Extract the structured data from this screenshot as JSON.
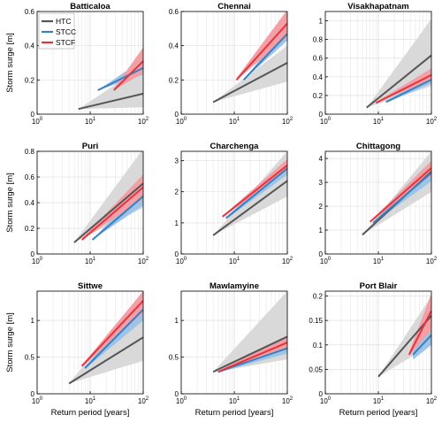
{
  "colors": {
    "htc": "#555555",
    "htc_band": "#d9d9d9",
    "stcc": "#3a7fc1",
    "stcc_band": "#9cc4e8",
    "stcf": "#e8323c",
    "stcf_band": "#f2a0a6",
    "grid": "#e0e0e0"
  },
  "chart_data": {
    "type": "line",
    "x_scale": "log",
    "xlabel": "Return period [years]",
    "ylabel": "Storm surge [m]",
    "xlim": [
      1,
      100
    ],
    "x_ticks": [
      {
        "value": 1,
        "base": "10",
        "exp": "0"
      },
      {
        "value": 10,
        "base": "10",
        "exp": "1"
      },
      {
        "value": 100,
        "base": "10",
        "exp": "2"
      }
    ],
    "legend": {
      "placement": "top-left",
      "entries": [
        "HTC",
        "STCC",
        "STCF"
      ]
    },
    "panels": [
      {
        "title": "Batticaloa",
        "ylim": [
          0,
          0.6
        ],
        "yticks": [
          0,
          0.2,
          0.4,
          0.6
        ],
        "htc": {
          "x": [
            6,
            100
          ],
          "y": [
            0.03,
            0.12
          ],
          "band_lower": [
            0.03,
            0.04
          ],
          "band_upper": [
            0.03,
            0.28
          ]
        },
        "stcc": {
          "x": [
            14,
            100
          ],
          "y": [
            0.14,
            0.27
          ],
          "band_lower": [
            0.14,
            0.23
          ],
          "band_upper": [
            0.14,
            0.32
          ]
        },
        "stcf": {
          "x": [
            28,
            100
          ],
          "y": [
            0.14,
            0.31
          ],
          "band_lower": [
            0.14,
            0.24
          ],
          "band_upper": [
            0.15,
            0.39
          ]
        }
      },
      {
        "title": "Chennai",
        "ylim": [
          0,
          0.6
        ],
        "yticks": [
          0,
          0.2,
          0.4,
          0.6
        ],
        "htc": {
          "x": [
            4,
            100
          ],
          "y": [
            0.07,
            0.3
          ],
          "band_lower": [
            0.07,
            0.19
          ],
          "band_upper": [
            0.07,
            0.4
          ]
        },
        "stcc": {
          "x": [
            15,
            100
          ],
          "y": [
            0.2,
            0.47
          ],
          "band_lower": [
            0.2,
            0.43
          ],
          "band_upper": [
            0.2,
            0.52
          ]
        },
        "stcf": {
          "x": [
            11,
            100
          ],
          "y": [
            0.2,
            0.53
          ],
          "band_lower": [
            0.2,
            0.45
          ],
          "band_upper": [
            0.21,
            0.61
          ]
        }
      },
      {
        "title": "Visakhapatnam",
        "ylim": [
          0,
          1.1
        ],
        "yticks": [
          0,
          0.2,
          0.4,
          0.6,
          0.8,
          1
        ],
        "htc": {
          "x": [
            6,
            100
          ],
          "y": [
            0.07,
            0.63
          ],
          "band_lower": [
            0.07,
            0.3
          ],
          "band_upper": [
            0.07,
            1.02
          ]
        },
        "stcc": {
          "x": [
            14,
            100
          ],
          "y": [
            0.13,
            0.37
          ],
          "band_lower": [
            0.12,
            0.33
          ],
          "band_upper": [
            0.14,
            0.43
          ]
        },
        "stcf": {
          "x": [
            9,
            100
          ],
          "y": [
            0.12,
            0.42
          ],
          "band_lower": [
            0.12,
            0.37
          ],
          "band_upper": [
            0.13,
            0.49
          ]
        }
      },
      {
        "title": "Puri",
        "ylim": [
          0,
          0.8
        ],
        "yticks": [
          0,
          0.2,
          0.4,
          0.6,
          0.8
        ],
        "htc": {
          "x": [
            5,
            100
          ],
          "y": [
            0.09,
            0.55
          ],
          "band_lower": [
            0.09,
            0.36
          ],
          "band_upper": [
            0.09,
            0.82
          ]
        },
        "stcc": {
          "x": [
            11,
            100
          ],
          "y": [
            0.11,
            0.45
          ],
          "band_lower": [
            0.11,
            0.38
          ],
          "band_upper": [
            0.11,
            0.53
          ]
        },
        "stcf": {
          "x": [
            7,
            100
          ],
          "y": [
            0.11,
            0.52
          ],
          "band_lower": [
            0.11,
            0.43
          ],
          "band_upper": [
            0.12,
            0.62
          ]
        }
      },
      {
        "title": "Charchenga",
        "ylim": [
          0,
          3.3
        ],
        "yticks": [
          0,
          1,
          2,
          3
        ],
        "htc": {
          "x": [
            4,
            100
          ],
          "y": [
            0.6,
            2.35
          ],
          "band_lower": [
            0.6,
            1.85
          ],
          "band_upper": [
            0.6,
            3.3
          ]
        },
        "stcc": {
          "x": [
            7,
            100
          ],
          "y": [
            1.15,
            2.75
          ],
          "band_lower": [
            1.12,
            2.55
          ],
          "band_upper": [
            1.18,
            2.95
          ]
        },
        "stcf": {
          "x": [
            6,
            100
          ],
          "y": [
            1.2,
            2.85
          ],
          "band_lower": [
            1.18,
            2.68
          ],
          "band_upper": [
            1.22,
            3.05
          ]
        }
      },
      {
        "title": "Chittagong",
        "ylim": [
          0,
          4.3
        ],
        "yticks": [
          0,
          1,
          2,
          3,
          4
        ],
        "htc": {
          "x": [
            5,
            100
          ],
          "y": [
            0.8,
            3.45
          ],
          "band_lower": [
            0.8,
            2.6
          ],
          "band_upper": [
            0.8,
            4.3
          ]
        },
        "stcc": {
          "x": [
            8,
            100
          ],
          "y": [
            1.3,
            3.4
          ],
          "band_lower": [
            1.28,
            3.05
          ],
          "band_upper": [
            1.32,
            3.75
          ]
        },
        "stcf": {
          "x": [
            7,
            100
          ],
          "y": [
            1.35,
            3.6
          ],
          "band_lower": [
            1.33,
            3.3
          ],
          "band_upper": [
            1.37,
            3.9
          ]
        }
      },
      {
        "title": "Sittwe",
        "ylim": [
          0,
          1.4
        ],
        "yticks": [
          0,
          0.5,
          1
        ],
        "htc": {
          "x": [
            4,
            100
          ],
          "y": [
            0.14,
            0.77
          ],
          "band_lower": [
            0.14,
            0.45
          ],
          "band_upper": [
            0.14,
            1.4
          ]
        },
        "stcc": {
          "x": [
            8,
            100
          ],
          "y": [
            0.35,
            1.15
          ],
          "band_lower": [
            0.34,
            1.0
          ],
          "band_upper": [
            0.36,
            1.3
          ]
        },
        "stcf": {
          "x": [
            7,
            100
          ],
          "y": [
            0.38,
            1.27
          ],
          "band_lower": [
            0.37,
            1.1
          ],
          "band_upper": [
            0.39,
            1.4
          ]
        }
      },
      {
        "title": "Mawlamyine",
        "ylim": [
          0,
          1.4
        ],
        "yticks": [
          0,
          0.5,
          1
        ],
        "htc": {
          "x": [
            4,
            100
          ],
          "y": [
            0.3,
            0.78
          ],
          "band_lower": [
            0.29,
            0.47
          ],
          "band_upper": [
            0.3,
            1.4
          ]
        },
        "stcc": {
          "x": [
            5,
            100
          ],
          "y": [
            0.3,
            0.62
          ],
          "band_lower": [
            0.29,
            0.55
          ],
          "band_upper": [
            0.31,
            0.7
          ]
        },
        "stcf": {
          "x": [
            5,
            100
          ],
          "y": [
            0.3,
            0.7
          ],
          "band_lower": [
            0.29,
            0.62
          ],
          "band_upper": [
            0.31,
            0.79
          ]
        }
      },
      {
        "title": "Port Blair",
        "ylim": [
          0,
          0.21
        ],
        "yticks": [
          0,
          0.05,
          0.1,
          0.15,
          0.2
        ],
        "htc": {
          "x": [
            10,
            100
          ],
          "y": [
            0.035,
            0.16
          ],
          "band_lower": [
            0.035,
            0.1
          ],
          "band_upper": [
            0.035,
            0.2
          ]
        },
        "stcc": {
          "x": [
            45,
            100
          ],
          "y": [
            0.08,
            0.12
          ],
          "band_lower": [
            0.07,
            0.1
          ],
          "band_upper": [
            0.09,
            0.14
          ]
        },
        "stcf": {
          "x": [
            38,
            100
          ],
          "y": [
            0.08,
            0.17
          ],
          "band_lower": [
            0.078,
            0.13
          ],
          "band_upper": [
            0.085,
            0.205
          ]
        }
      }
    ]
  }
}
